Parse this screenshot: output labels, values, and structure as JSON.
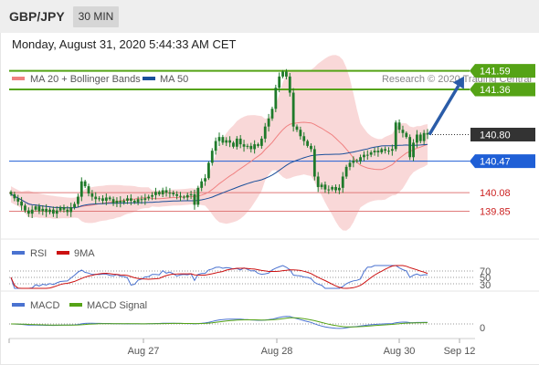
{
  "header": {
    "symbol": "GBP/JPY",
    "timeframe": "30 MIN",
    "datetime": "Monday, August 31, 2020 5:44:33 AM CET"
  },
  "colors": {
    "bollinger_band": "#f4b8b8",
    "ma20": "#f08080",
    "ma50": "#1a4f9a",
    "candle": "#1f7a2a",
    "resistance": "#55a316",
    "support": "#1f5fd6",
    "pivot_level": "#e07a7a",
    "arrow": "#2a5ca8",
    "rsi": "#4a72d0",
    "rsi_ma": "#cc1111",
    "macd": "#4a72d0",
    "macd_signal": "#55a316",
    "current_price_badge": "#333333"
  },
  "chart_data": [
    {
      "type": "candlestick",
      "legend": [
        {
          "label": "MA 20 + Bollinger Bands",
          "color": "#f08080"
        },
        {
          "label": "MA 50",
          "color": "#1a4f9a"
        }
      ],
      "watermark": "Research © 2020 Trading Central",
      "x_ticks": [
        "Aug 27",
        "Aug 28",
        "Aug 30",
        "Sep 12"
      ],
      "ylim": [
        139.55,
        141.79
      ],
      "current_price": 140.8,
      "levels": [
        {
          "value": 141.59,
          "label": "141.59",
          "kind": "resistance"
        },
        {
          "value": 141.36,
          "label": "141.36",
          "kind": "resistance"
        },
        {
          "value": 140.47,
          "label": "140.47",
          "kind": "support"
        },
        {
          "value": 140.08,
          "label": "140.08",
          "kind": "pivot"
        },
        {
          "value": 139.85,
          "label": "139.85",
          "kind": "pivot"
        }
      ],
      "close": [
        140.06,
        140.01,
        139.97,
        139.92,
        139.86,
        139.82,
        139.87,
        139.91,
        139.85,
        139.88,
        139.84,
        139.87,
        139.82,
        139.86,
        139.9,
        139.87,
        139.84,
        139.9,
        139.94,
        140.03,
        140.22,
        140.16,
        140.07,
        140.03,
        140.0,
        140.01,
        139.98,
        140.02,
        140.0,
        139.95,
        139.98,
        139.96,
        139.98,
        140.01,
        139.98,
        139.96,
        140.0,
        139.99,
        140.01,
        140.03,
        140.05,
        140.09,
        140.06,
        140.11,
        140.08,
        140.08,
        140.06,
        140.04,
        140.03,
        140.02,
        140.05,
        140.06,
        139.93,
        140.14,
        140.22,
        140.26,
        140.45,
        140.6,
        140.72,
        140.77,
        140.7,
        140.73,
        140.7,
        140.65,
        140.75,
        140.68,
        140.65,
        140.66,
        140.62,
        140.68,
        140.66,
        140.75,
        140.9,
        141.0,
        141.12,
        141.38,
        141.52,
        141.58,
        141.52,
        141.32,
        140.9,
        140.86,
        140.78,
        140.72,
        140.66,
        140.62,
        140.28,
        140.15,
        140.18,
        140.12,
        140.12,
        140.15,
        140.11,
        140.14,
        140.28,
        140.4,
        140.45,
        140.48,
        140.47,
        140.52,
        140.55,
        140.55,
        140.58,
        140.6,
        140.58,
        140.62,
        140.6,
        140.6,
        140.62,
        140.95,
        140.86,
        140.82,
        140.77,
        140.52,
        140.7,
        140.8,
        140.72,
        140.82,
        140.8
      ]
    },
    {
      "type": "line",
      "series": [
        {
          "name": "RSI",
          "color": "#4a72d0"
        },
        {
          "name": "9MA",
          "color": "#cc1111"
        }
      ],
      "y_ticks": [
        "70",
        "50",
        "30"
      ],
      "ylim": [
        0,
        100
      ]
    },
    {
      "type": "line",
      "series": [
        {
          "name": "MACD",
          "color": "#4a72d0"
        },
        {
          "name": "MACD Signal",
          "color": "#55a316"
        }
      ],
      "y_ticks": [
        "0"
      ]
    }
  ]
}
